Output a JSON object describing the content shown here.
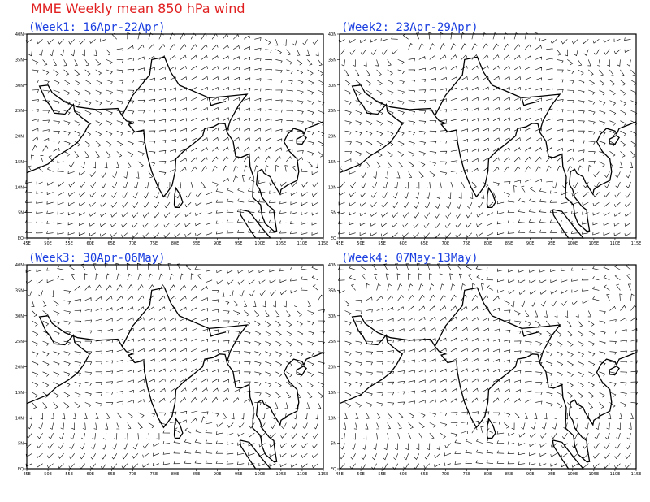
{
  "title": "MME Weekly mean 850 hPa wind",
  "panels": [
    {
      "title": "(Week1: 16Apr-22Apr)"
    },
    {
      "title": "(Week2: 23Apr-29Apr)"
    },
    {
      "title": "(Week3: 30Apr-06May)"
    },
    {
      "title": "(Week4: 07May-13May)"
    }
  ],
  "axes": {
    "x_labels": [
      "45E",
      "50E",
      "55E",
      "60E",
      "65E",
      "70E",
      "75E",
      "80E",
      "85E",
      "90E",
      "95E",
      "100E",
      "105E",
      "110E",
      "115E"
    ],
    "y_labels": [
      "EQ",
      "5N",
      "10N",
      "15N",
      "20N",
      "25N",
      "30N",
      "35N",
      "40N"
    ]
  }
}
